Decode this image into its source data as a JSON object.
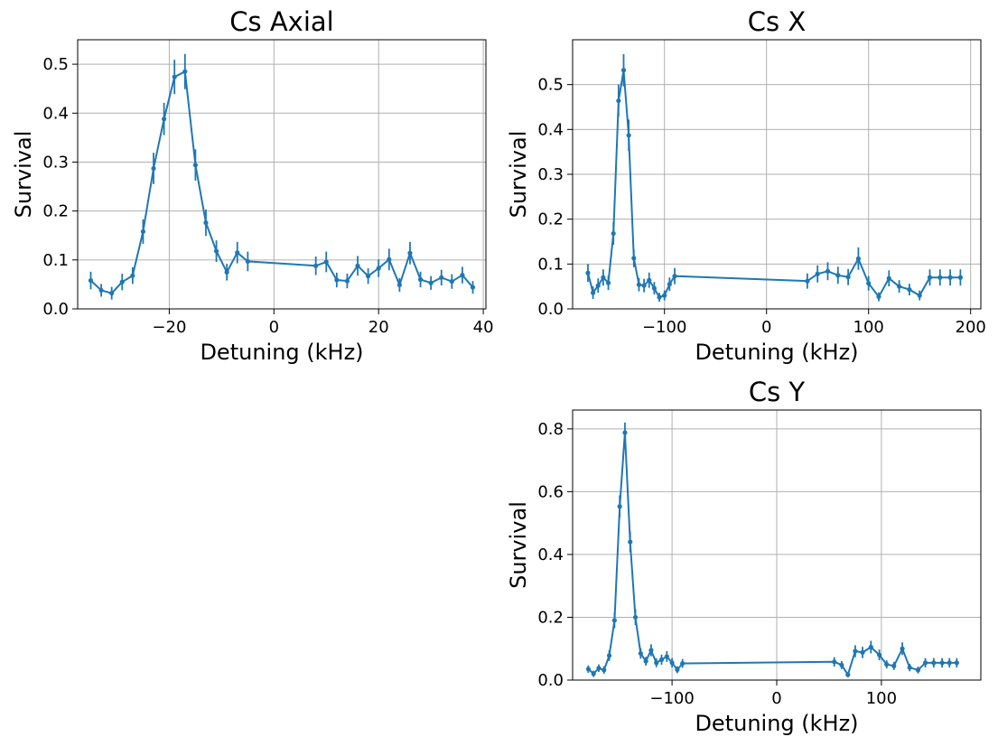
{
  "chart_data": [
    {
      "type": "line",
      "title": "Cs Axial",
      "xlabel": "Detuning (kHz)",
      "ylabel": "Survival",
      "xlim": [
        -37.5,
        40.5
      ],
      "ylim": [
        0,
        0.55
      ],
      "xticks": [
        -20,
        0,
        20,
        40
      ],
      "xtick_labels": [
        "−20",
        "0",
        "20",
        "40"
      ],
      "yticks": [
        0.0,
        0.1,
        0.2,
        0.3,
        0.4,
        0.5
      ],
      "ytick_labels": [
        "0.0",
        "0.1",
        "0.2",
        "0.3",
        "0.4",
        "0.5"
      ],
      "grid": true,
      "color": "#1f77b4",
      "series": [
        {
          "name": "Cs Axial",
          "x": [
            -35,
            -33,
            -31,
            -29,
            -27,
            -25,
            -23,
            -21,
            -19,
            -17,
            -15,
            -13,
            -11,
            -9,
            -7,
            -5,
            8,
            10,
            12,
            14,
            16,
            18,
            20,
            22,
            24,
            26,
            28,
            30,
            32,
            34,
            36,
            38
          ],
          "y": [
            0.058,
            0.038,
            0.032,
            0.055,
            0.068,
            0.158,
            0.287,
            0.388,
            0.474,
            0.485,
            0.294,
            0.176,
            0.118,
            0.075,
            0.115,
            0.097,
            0.088,
            0.096,
            0.059,
            0.057,
            0.088,
            0.067,
            0.083,
            0.101,
            0.049,
            0.114,
            0.06,
            0.053,
            0.064,
            0.056,
            0.069,
            0.044
          ],
          "err": [
            0.018,
            0.013,
            0.013,
            0.017,
            0.017,
            0.025,
            0.032,
            0.033,
            0.035,
            0.036,
            0.032,
            0.027,
            0.022,
            0.017,
            0.022,
            0.02,
            0.019,
            0.021,
            0.015,
            0.015,
            0.02,
            0.016,
            0.018,
            0.022,
            0.014,
            0.023,
            0.016,
            0.014,
            0.016,
            0.015,
            0.017,
            0.013
          ]
        }
      ]
    },
    {
      "type": "line",
      "title": "Cs X",
      "xlabel": "Detuning (kHz)",
      "ylabel": "Survival",
      "xlim": [
        -190,
        210
      ],
      "ylim": [
        0,
        0.6
      ],
      "xticks": [
        -100,
        0,
        100,
        200
      ],
      "xtick_labels": [
        "−100",
        "0",
        "100",
        "200"
      ],
      "yticks": [
        0.0,
        0.1,
        0.2,
        0.3,
        0.4,
        0.5
      ],
      "ytick_labels": [
        "0.0",
        "0.1",
        "0.2",
        "0.3",
        "0.4",
        "0.5"
      ],
      "grid": true,
      "color": "#1f77b4",
      "series": [
        {
          "name": "Cs X",
          "x": [
            -175,
            -170,
            -165,
            -160,
            -155,
            -150,
            -145,
            -140,
            -135,
            -130,
            -125,
            -120,
            -115,
            -110,
            -105,
            -100,
            -95,
            -90,
            40,
            50,
            60,
            70,
            80,
            90,
            100,
            110,
            120,
            130,
            140,
            150,
            160,
            170,
            180,
            190
          ],
          "y": [
            0.08,
            0.036,
            0.052,
            0.07,
            0.058,
            0.168,
            0.464,
            0.532,
            0.387,
            0.113,
            0.054,
            0.052,
            0.064,
            0.046,
            0.026,
            0.03,
            0.055,
            0.073,
            0.062,
            0.078,
            0.084,
            0.075,
            0.071,
            0.112,
            0.057,
            0.027,
            0.068,
            0.05,
            0.043,
            0.03,
            0.07,
            0.07,
            0.07,
            0.07
          ],
          "err": [
            0.02,
            0.014,
            0.016,
            0.018,
            0.016,
            0.025,
            0.036,
            0.036,
            0.035,
            0.02,
            0.015,
            0.015,
            0.017,
            0.014,
            0.01,
            0.011,
            0.015,
            0.018,
            0.017,
            0.019,
            0.02,
            0.019,
            0.018,
            0.025,
            0.016,
            0.01,
            0.018,
            0.014,
            0.013,
            0.011,
            0.018,
            0.018,
            0.018,
            0.018
          ]
        }
      ]
    },
    {
      "type": "line",
      "title": "Cs Y",
      "xlabel": "Detuning (kHz)",
      "ylabel": "Survival",
      "xlim": [
        -195,
        195
      ],
      "ylim": [
        0,
        0.86
      ],
      "xticks": [
        -100,
        0,
        100
      ],
      "xtick_labels": [
        "−100",
        "0",
        "100"
      ],
      "yticks": [
        0.0,
        0.2,
        0.4,
        0.6,
        0.8
      ],
      "ytick_labels": [
        "0.0",
        "0.2",
        "0.4",
        "0.6",
        "0.8"
      ],
      "grid": true,
      "color": "#1f77b4",
      "series": [
        {
          "name": "Cs Y",
          "x": [
            -180,
            -175,
            -170,
            -165,
            -160,
            -155,
            -150,
            -145,
            -140,
            -135,
            -130,
            -125,
            -120,
            -115,
            -110,
            -105,
            -100,
            -95,
            -90,
            55,
            62,
            68,
            75,
            82,
            90,
            98,
            105,
            112,
            120,
            127,
            135,
            142,
            150,
            158,
            165,
            172
          ],
          "y": [
            0.035,
            0.02,
            0.038,
            0.032,
            0.078,
            0.19,
            0.553,
            0.788,
            0.44,
            0.2,
            0.085,
            0.06,
            0.095,
            0.055,
            0.065,
            0.075,
            0.055,
            0.033,
            0.053,
            0.058,
            0.048,
            0.017,
            0.092,
            0.088,
            0.105,
            0.08,
            0.05,
            0.045,
            0.1,
            0.04,
            0.032,
            0.055,
            0.055,
            0.055,
            0.055,
            0.055
          ],
          "err": [
            0.012,
            0.01,
            0.012,
            0.012,
            0.017,
            0.025,
            0.035,
            0.032,
            0.033,
            0.025,
            0.017,
            0.014,
            0.019,
            0.014,
            0.016,
            0.017,
            0.015,
            0.011,
            0.014,
            0.015,
            0.013,
            0.008,
            0.019,
            0.018,
            0.02,
            0.017,
            0.013,
            0.013,
            0.02,
            0.012,
            0.011,
            0.015,
            0.015,
            0.015,
            0.015,
            0.015
          ]
        }
      ]
    }
  ]
}
